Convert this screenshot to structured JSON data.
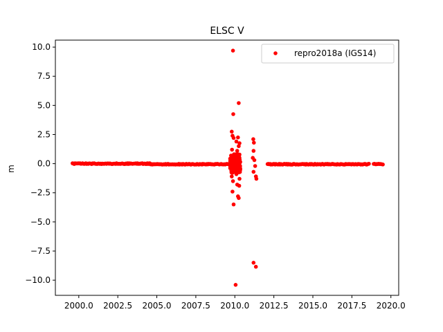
{
  "chart_data": {
    "type": "scatter",
    "title": "ELSC V",
    "xlabel": "",
    "ylabel": "m",
    "xlim": [
      1998.5,
      2020.5
    ],
    "ylim": [
      -11.3,
      10.6
    ],
    "xticks": [
      2000.0,
      2002.5,
      2005.0,
      2007.5,
      2010.0,
      2012.5,
      2015.0,
      2017.5,
      2020.0
    ],
    "xtick_labels": [
      "2000.0",
      "2002.5",
      "2005.0",
      "2007.5",
      "2010.0",
      "2012.5",
      "2015.0",
      "2017.5",
      "2020.0"
    ],
    "yticks": [
      -10.0,
      -7.5,
      -5.0,
      -2.5,
      0.0,
      2.5,
      5.0,
      7.5,
      10.0
    ],
    "ytick_labels": [
      "−10.0",
      "−7.5",
      "−5.0",
      "−2.5",
      "0.0",
      "2.5",
      "5.0",
      "7.5",
      "10.0"
    ],
    "legend_position": "top-right",
    "grid": false,
    "series": [
      {
        "name": "repro2018a (IGS14)",
        "color": "#ff0000",
        "marker": "circle",
        "dense_segments": [
          {
            "x_start": 1999.6,
            "x_end": 2004.6,
            "y": 0.0
          },
          {
            "x_start": 2004.6,
            "x_end": 2009.7,
            "y": -0.05
          },
          {
            "x_start": 2012.1,
            "x_end": 2018.6,
            "y": -0.05
          },
          {
            "x_start": 2018.9,
            "x_end": 2019.5,
            "y": -0.05
          }
        ],
        "points": [
          {
            "x": 2009.88,
            "y": 9.7
          },
          {
            "x": 2010.25,
            "y": 5.2
          },
          {
            "x": 2009.9,
            "y": 4.25
          },
          {
            "x": 2009.8,
            "y": 2.75
          },
          {
            "x": 2009.85,
            "y": 2.4
          },
          {
            "x": 2009.92,
            "y": 2.2
          },
          {
            "x": 2010.2,
            "y": 2.25
          },
          {
            "x": 2010.1,
            "y": 1.9
          },
          {
            "x": 2010.3,
            "y": 1.75
          },
          {
            "x": 2010.25,
            "y": 1.5
          },
          {
            "x": 2009.82,
            "y": 1.2
          },
          {
            "x": 2010.15,
            "y": 1.1
          },
          {
            "x": 2009.95,
            "y": 0.8
          },
          {
            "x": 2010.05,
            "y": 0.6
          },
          {
            "x": 2010.3,
            "y": 0.5
          },
          {
            "x": 2009.9,
            "y": 0.3
          },
          {
            "x": 2010.2,
            "y": 0.25
          },
          {
            "x": 2010.0,
            "y": -0.2
          },
          {
            "x": 2009.85,
            "y": -0.4
          },
          {
            "x": 2010.25,
            "y": -0.5
          },
          {
            "x": 2009.95,
            "y": -0.7
          },
          {
            "x": 2010.1,
            "y": -0.9
          },
          {
            "x": 2009.8,
            "y": -1.1
          },
          {
            "x": 2010.3,
            "y": -1.3
          },
          {
            "x": 2009.88,
            "y": -1.5
          },
          {
            "x": 2010.15,
            "y": -1.8
          },
          {
            "x": 2010.28,
            "y": -1.9
          },
          {
            "x": 2009.85,
            "y": -2.4
          },
          {
            "x": 2010.2,
            "y": -2.8
          },
          {
            "x": 2010.25,
            "y": -2.95
          },
          {
            "x": 2009.92,
            "y": -3.5
          },
          {
            "x": 2010.05,
            "y": -10.4
          },
          {
            "x": 2011.18,
            "y": 2.1
          },
          {
            "x": 2011.22,
            "y": 1.8
          },
          {
            "x": 2011.2,
            "y": 1.1
          },
          {
            "x": 2011.15,
            "y": 0.5
          },
          {
            "x": 2011.25,
            "y": 0.3
          },
          {
            "x": 2011.3,
            "y": -0.2
          },
          {
            "x": 2011.2,
            "y": -0.7
          },
          {
            "x": 2011.35,
            "y": -1.1
          },
          {
            "x": 2011.38,
            "y": -1.3
          },
          {
            "x": 2011.2,
            "y": -8.5
          },
          {
            "x": 2011.35,
            "y": -8.85
          }
        ]
      }
    ]
  }
}
